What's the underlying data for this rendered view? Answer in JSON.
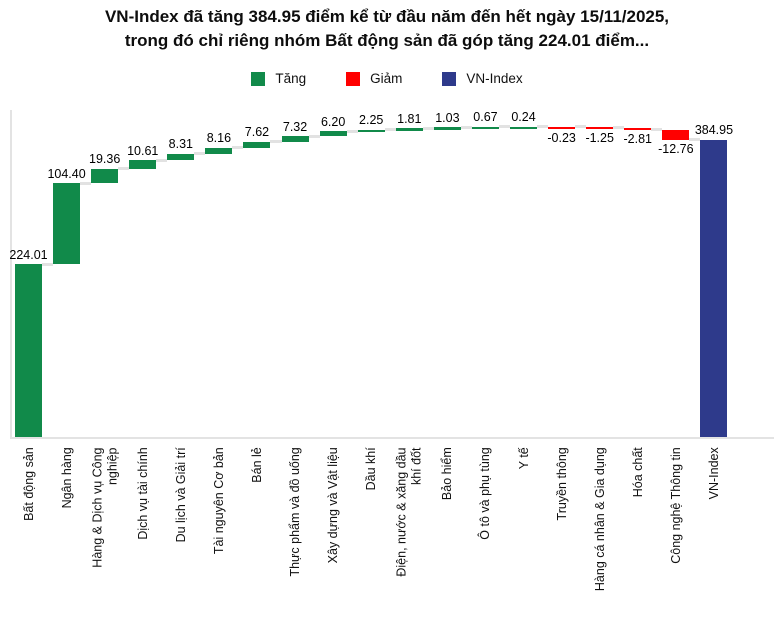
{
  "title": "VN-Index đã tăng 384.95 điểm kể từ đầu năm đến hết ngày 15/11/2025,\ntrong đó chỉ riêng nhóm Bất động sản đã góp tăng 224.01 điểm...",
  "legend": [
    {
      "label": "Tăng",
      "color": "#118a4a"
    },
    {
      "label": "Giảm",
      "color": "#ff0000"
    },
    {
      "label": "VN-Index",
      "color": "#2e3a8b"
    }
  ],
  "colors": {
    "up": "#118a4a",
    "down": "#ff0000",
    "total": "#2e3a8b",
    "connector": "#e2e2e2",
    "axis": "#e3e3e3",
    "title_text": "#0d0d0d",
    "label_text": "#111111"
  },
  "chart_data": {
    "type": "bar",
    "subtype": "waterfall",
    "title": "VN-Index đã tăng 384.95 điểm kể từ đầu năm đến hết ngày 15/11/2025, trong đó chỉ riêng nhóm Bất động sản đã góp tăng 224.01 điểm...",
    "xlabel": "",
    "ylabel": "",
    "ylim": [
      0,
      420
    ],
    "grid": false,
    "legend_position": "top-center",
    "legend_entries": [
      "Tăng",
      "Giảm",
      "VN-Index"
    ],
    "categories": [
      "Bất động sản",
      "Ngân hàng",
      "Hàng & Dịch vụ Công\nnghiệp",
      "Dịch vụ tài chính",
      "Du lịch và Giải trí",
      "Tài nguyên Cơ bản",
      "Bán lẻ",
      "Thực phẩm và đồ uống",
      "Xây dựng và Vật liệu",
      "Dầu khí",
      "Điện, nước & xăng dầu\nkhí đốt",
      "Bảo hiểm",
      "Ô tô và phụ tùng",
      "Y tế",
      "Truyền thông",
      "Hàng cá nhân & Gia dụng",
      "Hóa chất",
      "Công nghệ Thông tin",
      "VN-Index"
    ],
    "values": [
      224.01,
      104.4,
      19.36,
      10.61,
      8.31,
      8.16,
      7.62,
      7.32,
      6.2,
      2.25,
      1.81,
      1.03,
      0.67,
      0.24,
      -0.23,
      -1.25,
      -2.81,
      -12.76,
      384.95
    ],
    "value_labels": [
      "224.01",
      "104.40",
      "19.36",
      "10.61",
      "8.31",
      "8.16",
      "7.62",
      "7.32",
      "6.20",
      "2.25",
      "1.81",
      "1.03",
      "0.67",
      "0.24",
      "-0.23",
      "-1.25",
      "-2.81",
      "-12.76",
      "384.95"
    ],
    "total_index": 18
  }
}
